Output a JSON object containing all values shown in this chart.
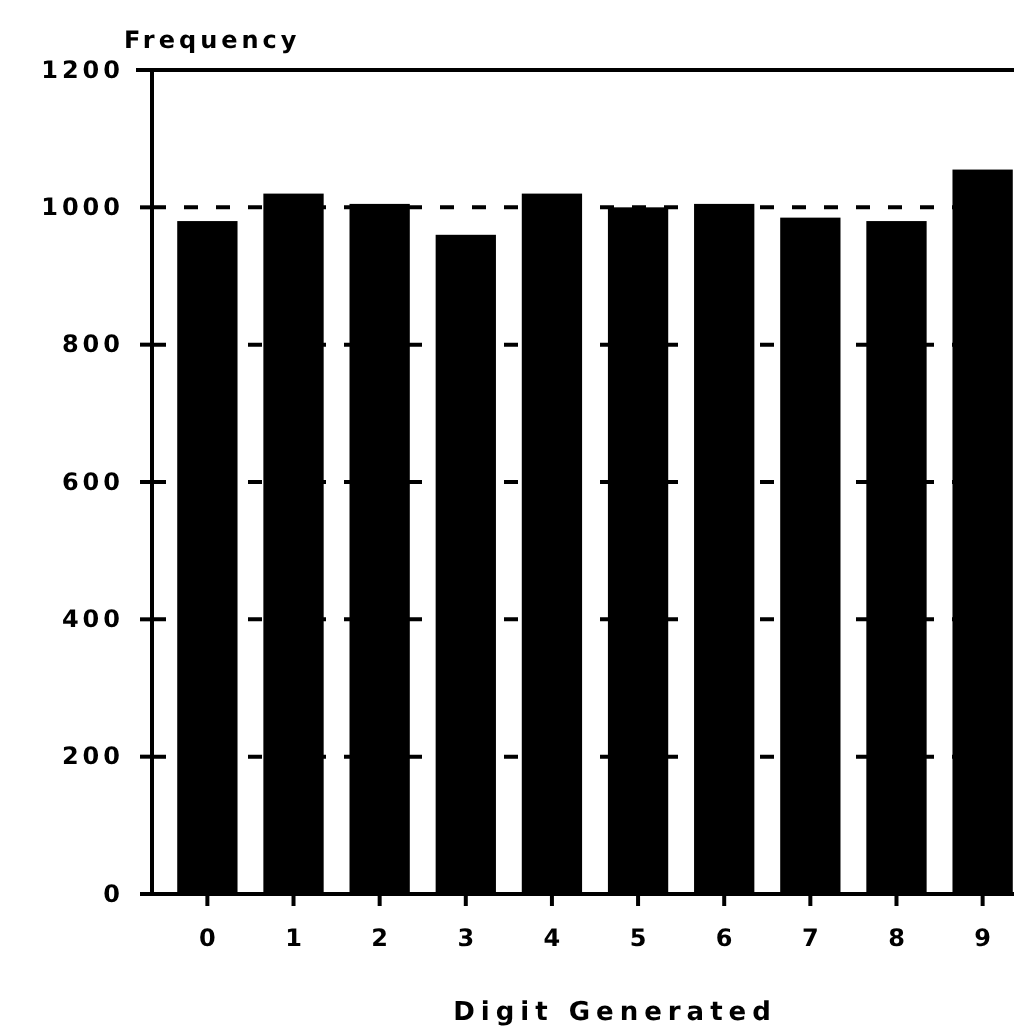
{
  "chart_data": {
    "type": "bar",
    "xlabel": "Digit Generated",
    "ylabel": "Frequency",
    "categories": [
      "0",
      "1",
      "2",
      "3",
      "4",
      "5",
      "6",
      "7",
      "8",
      "9"
    ],
    "values": [
      980,
      1020,
      1005,
      960,
      1020,
      1000,
      1005,
      985,
      980,
      1055
    ],
    "color": "#000000",
    "ylim": [
      0,
      1200
    ],
    "yticks": [
      0,
      200,
      400,
      600,
      800,
      1000,
      1200
    ],
    "grid": "y"
  }
}
